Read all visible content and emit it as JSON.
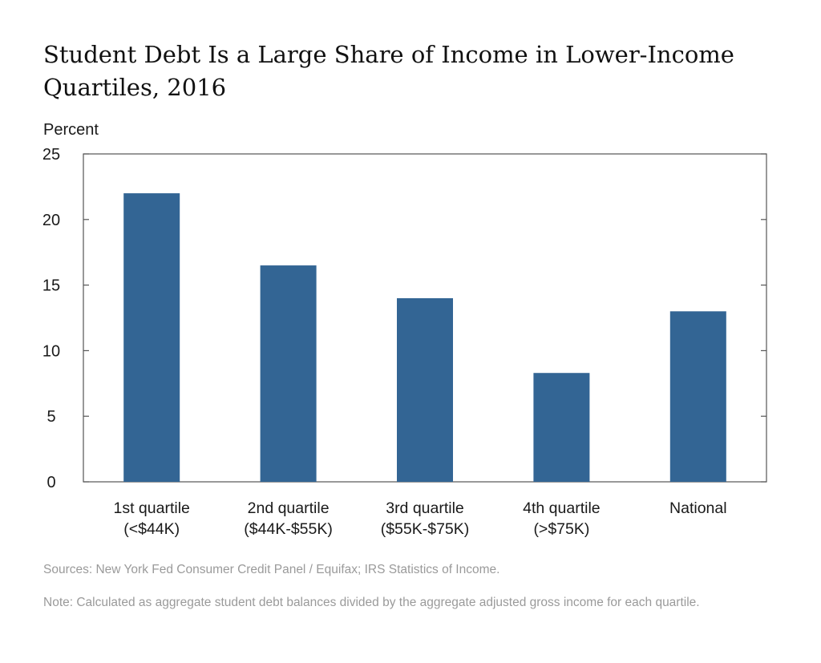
{
  "chart_data": {
    "type": "bar",
    "title": "Student Debt Is a Large Share of Income in Lower-Income Quartiles, 2016",
    "ylabel": "Percent",
    "xlabel": "",
    "categories": [
      [
        "1st quartile",
        "(<$44K)"
      ],
      [
        "2nd quartile",
        "($44K-$55K)"
      ],
      [
        "3rd quartile",
        "($55K-$75K)"
      ],
      [
        "4th quartile",
        "(>$75K)"
      ],
      [
        "National"
      ]
    ],
    "values": [
      22.0,
      16.5,
      14.0,
      8.3,
      13.0
    ],
    "ylim": [
      0,
      25
    ],
    "yticks": [
      "0",
      "5",
      "10",
      "15",
      "20",
      "25"
    ],
    "grid": false,
    "legend": "none",
    "bar_color": "#336594",
    "axis_color": "#555555"
  },
  "footer": {
    "sources": "Sources:  New York Fed Consumer Credit Panel / Equifax; IRS Statistics of Income.",
    "note": "Note: Calculated as aggregate student debt balances divided by the aggregate adjusted gross income for each quartile."
  }
}
